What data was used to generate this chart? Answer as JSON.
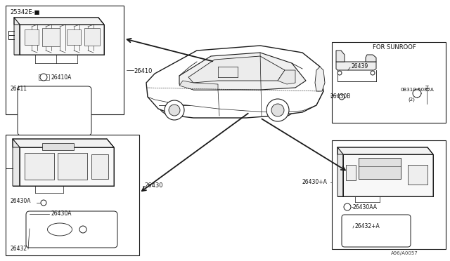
{
  "bg_color": "#ffffff",
  "lc": "#1a1a1a",
  "diagram_number": "A96/A0057",
  "labels": {
    "25342E": "25342E-■",
    "26410": "26410",
    "26410A": "26410A",
    "26411": "26411",
    "26430": "26430",
    "26430A_1": "26430A",
    "26430A_2": "26430A",
    "26432": "26432",
    "26430B": "26430B",
    "26439": "26439",
    "0B310": "0B310-5082A",
    "0B310_2": "(2)",
    "26430_plus_A": "26430+A",
    "26430AA": "26430AA",
    "26432_plus_A": "26432+A",
    "for_sunroof": "FOR SUNROOF"
  }
}
